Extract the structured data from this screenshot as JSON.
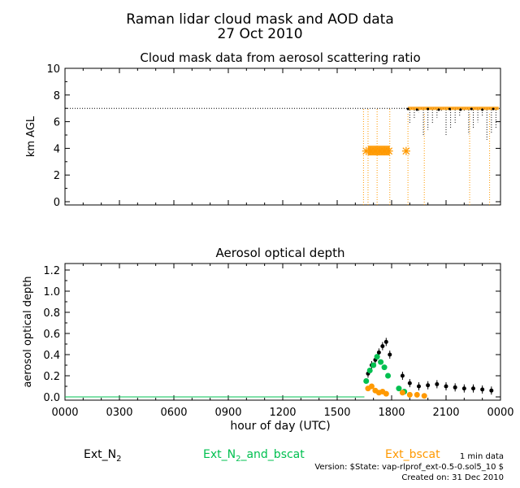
{
  "header": {
    "title": "Raman lidar cloud mask and AOD data",
    "date": "27 Oct 2010"
  },
  "colors": {
    "ext_n2": "#000000",
    "ext_n2_bscat": "#00c050",
    "ext_bscat": "#ff9900"
  },
  "chart_data": [
    {
      "type": "scatter",
      "title": "Cloud mask data from aerosol scattering ratio",
      "ylabel": "km AGL",
      "ylim": [
        0,
        10
      ],
      "yticks": [
        "0",
        "2",
        "4",
        "6",
        "8",
        "10"
      ],
      "xlim": [
        0,
        24
      ],
      "reference_line": {
        "y": 7.0,
        "style": "dotted"
      },
      "series": [
        {
          "name": "cloud base (star)",
          "color": "#ff9900",
          "x": [
            16.6,
            16.85,
            17.1,
            17.35,
            17.6,
            17.85,
            18.8
          ],
          "y": [
            3.8,
            3.8,
            3.8,
            3.8,
            3.8,
            3.8,
            3.8
          ]
        },
        {
          "name": "cloud top",
          "color": "#000000",
          "x": [
            18.9,
            19.4,
            20.0,
            20.6,
            21.2,
            21.8,
            22.4,
            23.0,
            23.6
          ],
          "y": [
            6.95,
            6.9,
            6.95,
            6.9,
            6.95,
            6.9,
            6.95,
            6.9,
            6.95
          ]
        }
      ]
    },
    {
      "type": "scatter",
      "title": "Aerosol optical depth",
      "xlabel": "hour of day (UTC)",
      "ylabel": "aerosol optical depth",
      "xlim": [
        0,
        24
      ],
      "ylim": [
        0,
        1.2
      ],
      "xticks": [
        "0000",
        "0300",
        "0600",
        "0900",
        "1200",
        "1500",
        "1800",
        "2100",
        "0000"
      ],
      "yticks": [
        "0.0",
        "0.2",
        "0.4",
        "0.6",
        "0.8",
        "1.0",
        "1.2"
      ],
      "series": [
        {
          "name": "Ext_N2",
          "color": "#000000",
          "x": [
            16.7,
            16.9,
            17.1,
            17.3,
            17.5,
            17.7,
            17.9,
            18.6,
            19.0,
            19.5,
            20.0,
            20.5,
            21.0,
            21.5,
            22.0,
            22.5,
            23.0,
            23.5
          ],
          "y": [
            0.22,
            0.3,
            0.35,
            0.42,
            0.48,
            0.52,
            0.4,
            0.2,
            0.13,
            0.1,
            0.11,
            0.12,
            0.1,
            0.09,
            0.08,
            0.08,
            0.07,
            0.06
          ]
        },
        {
          "name": "Ext_N2_and_bscat",
          "color": "#00c050",
          "x": [
            16.6,
            16.8,
            17.0,
            17.2,
            17.4,
            17.6,
            17.8,
            18.4,
            18.7
          ],
          "y": [
            0.15,
            0.25,
            0.3,
            0.38,
            0.33,
            0.28,
            0.2,
            0.08,
            0.05
          ]
        },
        {
          "name": "Ext_bscat",
          "color": "#ff9900",
          "x": [
            16.7,
            16.9,
            17.1,
            17.3,
            17.5,
            17.7,
            18.6,
            19.0,
            19.4,
            19.8
          ],
          "y": [
            0.08,
            0.1,
            0.06,
            0.04,
            0.05,
            0.03,
            0.04,
            0.02,
            0.02,
            0.01
          ]
        }
      ]
    }
  ],
  "legend": {
    "ext_n2": {
      "base": "Ext_N",
      "sub": "2"
    },
    "ext_n2_bscat": {
      "base": "Ext_N",
      "sub": "2",
      "rest": "_and_bscat"
    },
    "ext_bscat": "Ext_bscat",
    "resolution": "1 min data"
  },
  "footer": {
    "version": "Version: $State: vap-rlprof_ext-0.5-0.sol5_10 $",
    "created": "Created on: 31 Dec 2010"
  }
}
